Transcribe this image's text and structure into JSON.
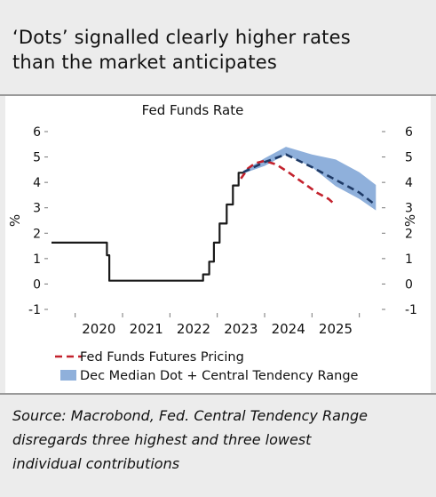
{
  "header": {
    "title_line1": "‘Dots’ signalled clearly higher rates",
    "title_line2": "than the market anticipates"
  },
  "chart_data": {
    "type": "line",
    "title": "Fed Funds Rate",
    "ylabel_left": "%",
    "ylabel_right": "%",
    "ylim": [
      -1,
      6
    ],
    "yticks": [
      -1,
      0,
      1,
      2,
      3,
      4,
      5,
      6
    ],
    "xlim": [
      2019.0,
      2025.9
    ],
    "xticks": [
      {
        "label": "2020",
        "x": 2020
      },
      {
        "label": "2021",
        "x": 2021
      },
      {
        "label": "2022",
        "x": 2022
      },
      {
        "label": "2023",
        "x": 2023
      },
      {
        "label": "2024",
        "x": 2024
      },
      {
        "label": "2025",
        "x": 2025
      }
    ],
    "series": [
      {
        "name": "Fed funds rate",
        "style": "step",
        "color": "#1a1a1a",
        "points": [
          [
            2019.0,
            1.63
          ],
          [
            2020.17,
            1.63
          ],
          [
            2020.17,
            1.13
          ],
          [
            2020.22,
            1.13
          ],
          [
            2020.22,
            0.13
          ],
          [
            2022.2,
            0.13
          ],
          [
            2022.2,
            0.38
          ],
          [
            2022.33,
            0.38
          ],
          [
            2022.33,
            0.88
          ],
          [
            2022.43,
            0.88
          ],
          [
            2022.43,
            1.63
          ],
          [
            2022.55,
            1.63
          ],
          [
            2022.55,
            2.38
          ],
          [
            2022.7,
            2.38
          ],
          [
            2022.7,
            3.13
          ],
          [
            2022.83,
            3.13
          ],
          [
            2022.83,
            3.88
          ],
          [
            2022.95,
            3.88
          ],
          [
            2022.95,
            4.38
          ],
          [
            2023.05,
            4.38
          ],
          [
            2023.05,
            4.4
          ]
        ]
      },
      {
        "name": "Fed Funds Futures Pricing",
        "style": "dashed",
        "color": "#c3222d",
        "points": [
          [
            2023.0,
            4.15
          ],
          [
            2023.15,
            4.55
          ],
          [
            2023.3,
            4.75
          ],
          [
            2023.5,
            4.85
          ],
          [
            2023.75,
            4.7
          ],
          [
            2024.0,
            4.4
          ],
          [
            2024.3,
            4.0
          ],
          [
            2024.6,
            3.6
          ],
          [
            2024.85,
            3.35
          ],
          [
            2025.0,
            3.1
          ]
        ]
      },
      {
        "name": "Dec Median Dot",
        "style": "dashed",
        "color": "#1e3a66",
        "points": [
          [
            2023.05,
            4.4
          ],
          [
            2023.5,
            4.8
          ],
          [
            2023.95,
            5.1
          ],
          [
            2024.5,
            4.6
          ],
          [
            2025.0,
            4.1
          ],
          [
            2025.5,
            3.6
          ],
          [
            2025.85,
            3.1
          ]
        ]
      }
    ],
    "band": {
      "name": "Dec Median Dot + Central Tendency Range",
      "color": "#8fb0db",
      "upper": [
        [
          2023.05,
          4.45
        ],
        [
          2023.5,
          4.95
        ],
        [
          2023.95,
          5.4
        ],
        [
          2024.5,
          5.1
        ],
        [
          2025.0,
          4.9
        ],
        [
          2025.5,
          4.4
        ],
        [
          2025.85,
          3.9
        ]
      ],
      "lower": [
        [
          2023.05,
          4.35
        ],
        [
          2023.5,
          4.65
        ],
        [
          2023.95,
          5.1
        ],
        [
          2024.5,
          4.6
        ],
        [
          2025.0,
          3.85
        ],
        [
          2025.5,
          3.35
        ],
        [
          2025.85,
          2.9
        ]
      ]
    },
    "legend": [
      {
        "label": "Fed Funds Futures Pricing",
        "kind": "dashed",
        "color": "#c3222d"
      },
      {
        "label": "Dec Median Dot + Central Tendency Range",
        "kind": "band",
        "color": "#8fb0db"
      }
    ],
    "legend_position": "bottom",
    "grid": false
  },
  "footer": {
    "source_line1": "Source: Macrobond, Fed. Central Tendency Range",
    "source_line2": "disregards three highest and three lowest",
    "source_line3": "individual contributions"
  }
}
